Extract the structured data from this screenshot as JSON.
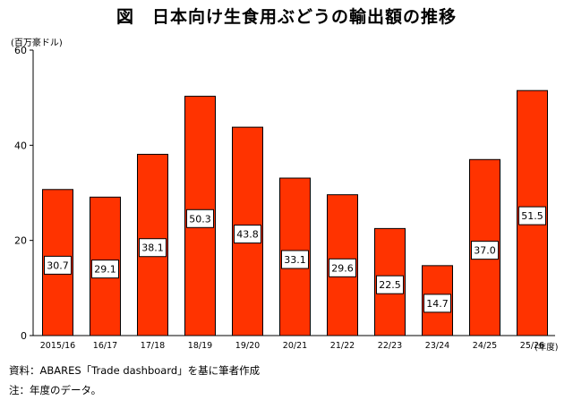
{
  "title": "図　日本向け生食用ぶどうの輸出額の推移",
  "notes": {
    "source": "資料：ABARES「Trade dashboard」を基に筆者作成",
    "note": "注：年度のデータ。"
  },
  "chart_data": {
    "type": "bar",
    "title": "図　日本向け生食用ぶどうの輸出額の推移",
    "ylabel": "(百万豪ドル)",
    "xlabel": "(年度)",
    "ylim": [
      0,
      60
    ],
    "yticks": [
      0,
      20,
      40,
      60
    ],
    "categories": [
      "2015/16",
      "16/17",
      "17/18",
      "18/19",
      "19/20",
      "20/21",
      "21/22",
      "22/23",
      "23/24",
      "24/25",
      "25/26"
    ],
    "values": [
      30.7,
      29.1,
      38.1,
      50.3,
      43.8,
      33.1,
      29.6,
      22.5,
      14.7,
      37.0,
      51.5
    ],
    "value_labels": [
      "30.7",
      "29.1",
      "38.1",
      "50.3",
      "43.8",
      "33.1",
      "29.6",
      "22.5",
      "14.7",
      "37.0",
      "51.5"
    ],
    "bar_color": "#ff3300",
    "bar_edge_color": "#000000",
    "grid": false,
    "legend": "none"
  }
}
